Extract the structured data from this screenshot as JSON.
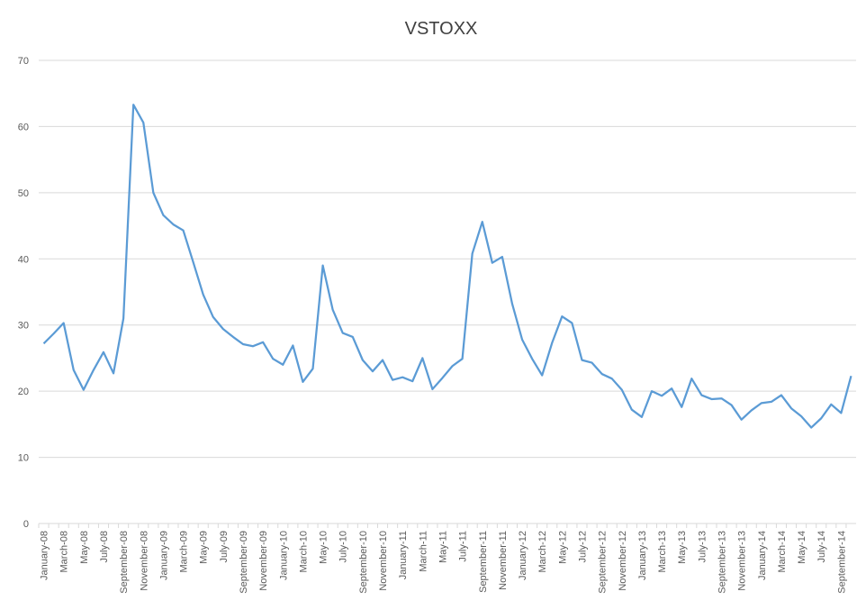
{
  "chart_data": {
    "type": "line",
    "title": "VSTOXX",
    "categories": [
      "January-08",
      null,
      "March-08",
      null,
      "May-08",
      null,
      "July-08",
      null,
      "September-08",
      null,
      "November-08",
      null,
      "January-09",
      null,
      "March-09",
      null,
      "May-09",
      null,
      "July-09",
      null,
      "September-09",
      null,
      "November-09",
      null,
      "January-10",
      null,
      "March-10",
      null,
      "May-10",
      null,
      "July-10",
      null,
      "September-10",
      null,
      "November-10",
      null,
      "January-11",
      null,
      "March-11",
      null,
      "May-11",
      null,
      "July-11",
      null,
      "September-11",
      null,
      "November-11",
      null,
      "January-12",
      null,
      "March-12",
      null,
      "May-12",
      null,
      "July-12",
      null,
      "September-12",
      null,
      "November-12",
      null,
      "January-13",
      null,
      "March-13",
      null,
      "May-13",
      null,
      "July-13",
      null,
      "September-13",
      null,
      "November-13",
      null,
      "January-14",
      null,
      "March-14",
      null,
      "May-14",
      null,
      "July-14",
      null,
      "September-14",
      null
    ],
    "values": [
      27.2,
      28.7,
      30.3,
      23.2,
      20.2,
      23.2,
      25.9,
      22.7,
      31.0,
      63.3,
      60.6,
      50.0,
      46.6,
      45.2,
      44.3,
      39.5,
      34.6,
      31.2,
      29.4,
      28.2,
      27.1,
      26.8,
      27.4,
      24.9,
      24.0,
      26.9,
      21.4,
      23.4,
      39.0,
      32.3,
      28.8,
      28.2,
      24.7,
      23.0,
      24.7,
      21.7,
      22.1,
      21.5,
      25.0,
      20.3,
      22.0,
      23.8,
      24.9,
      40.8,
      45.6,
      39.4,
      40.3,
      33.2,
      27.8,
      24.9,
      22.4,
      27.3,
      31.3,
      30.3,
      24.7,
      24.3,
      22.6,
      21.9,
      20.2,
      17.2,
      16.1,
      20.0,
      19.3,
      20.4,
      17.6,
      21.9,
      19.4,
      18.8,
      18.9,
      17.9,
      15.7,
      17.1,
      18.2,
      18.4,
      19.4,
      17.4,
      16.2,
      14.5,
      15.9,
      18.0,
      16.7,
      22.3
    ],
    "color": "#5b9bd5",
    "ylim": [
      0,
      70
    ],
    "yticks": [
      0,
      10,
      20,
      30,
      40,
      50,
      60,
      70
    ],
    "grid": true
  }
}
